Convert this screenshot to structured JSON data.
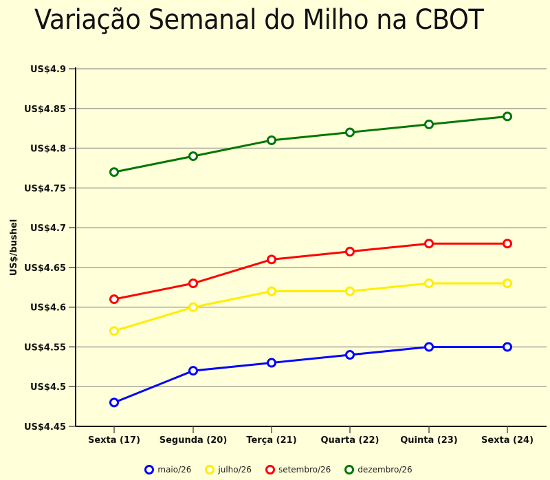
{
  "chart_data": {
    "type": "line",
    "title": "Variação Semanal do Milho na CBOT",
    "xlabel": "",
    "ylabel": "US$/bushel",
    "ylim": [
      4.45,
      4.9
    ],
    "yticks": [
      "US$4.45",
      "US$4.5",
      "US$4.55",
      "US$4.6",
      "US$4.65",
      "US$4.7",
      "US$4.75",
      "US$4.8",
      "US$4.85",
      "US$4.9"
    ],
    "ytick_values": [
      4.45,
      4.5,
      4.55,
      4.6,
      4.65,
      4.7,
      4.75,
      4.8,
      4.85,
      4.9
    ],
    "categories": [
      "Sexta (17)",
      "Segunda (20)",
      "Terça (21)",
      "Quarta (22)",
      "Quinta (23)",
      "Sexta (24)"
    ],
    "grid": true,
    "legend_position": "bottom",
    "series": [
      {
        "name": "maio/26",
        "color": "#0000ff",
        "values": [
          4.48,
          4.52,
          4.53,
          4.54,
          4.55,
          4.55
        ]
      },
      {
        "name": "julho/26",
        "color": "#ffee00",
        "values": [
          4.57,
          4.6,
          4.62,
          4.62,
          4.63,
          4.63
        ]
      },
      {
        "name": "setembro/26",
        "color": "#ff0000",
        "values": [
          4.61,
          4.63,
          4.66,
          4.67,
          4.68,
          4.68
        ]
      },
      {
        "name": "dezembro/26",
        "color": "#007700",
        "values": [
          4.77,
          4.79,
          4.81,
          4.82,
          4.83,
          4.84
        ]
      }
    ]
  },
  "colors": {
    "background": "#ffffd9",
    "gridline": "#a8a8a0",
    "axis": "#111111"
  }
}
